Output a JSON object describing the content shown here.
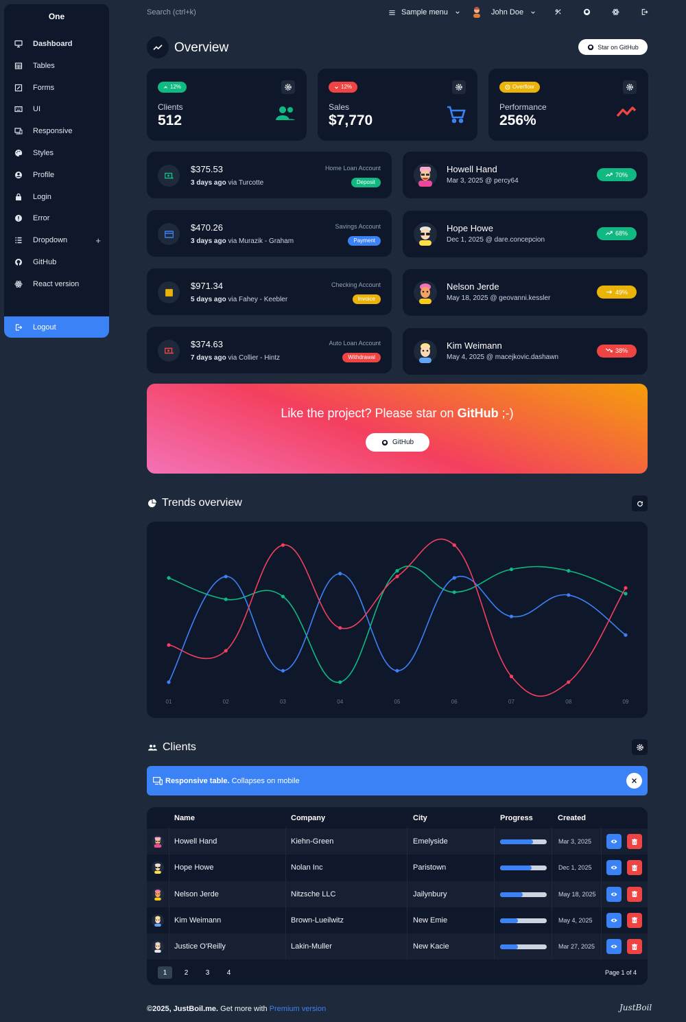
{
  "sidebar": {
    "brand": "One",
    "items": [
      {
        "label": "Dashboard",
        "icon": "monitor-icon"
      },
      {
        "label": "Tables",
        "icon": "table-icon"
      },
      {
        "label": "Forms",
        "icon": "edit-icon"
      },
      {
        "label": "UI",
        "icon": "keyboard-icon"
      },
      {
        "label": "Responsive",
        "icon": "responsive-icon"
      },
      {
        "label": "Styles",
        "icon": "palette-icon"
      },
      {
        "label": "Profile",
        "icon": "account-icon"
      },
      {
        "label": "Login",
        "icon": "lock-icon"
      },
      {
        "label": "Error",
        "icon": "alert-icon"
      },
      {
        "label": "Dropdown",
        "icon": "list-icon",
        "expand": "+"
      },
      {
        "label": "GitHub",
        "icon": "github-icon"
      },
      {
        "label": "React version",
        "icon": "react-icon"
      }
    ],
    "logout": "Logout"
  },
  "topbar": {
    "search_placeholder": "Search (ctrl+k)",
    "menu": "Sample menu",
    "user": "John Doe"
  },
  "overview": {
    "title": "Overview",
    "star_button": "Star on GitHub"
  },
  "stats": [
    {
      "badge": "12%",
      "badge_color": "#10b981",
      "label": "Clients",
      "value": "512",
      "icon_color": "#10b981"
    },
    {
      "badge": "12%",
      "badge_color": "#ef4444",
      "label": "Sales",
      "value": "$7,770",
      "icon_color": "#3b82f6"
    },
    {
      "badge": "Overflow",
      "badge_color": "#eab308",
      "label": "Performance",
      "value": "256%",
      "icon_color": "#ef4444"
    }
  ],
  "transactions": [
    {
      "amount": "$375.53",
      "when": "3 days ago",
      "via": "via Turcotte",
      "account": "Home Loan Account",
      "tag": "Deposit",
      "color": "#10b981"
    },
    {
      "amount": "$470.26",
      "when": "3 days ago",
      "via": "via Murazik - Graham",
      "account": "Savings Account",
      "tag": "Payment",
      "color": "#3b82f6"
    },
    {
      "amount": "$971.34",
      "when": "5 days ago",
      "via": "via Fahey - Keebler",
      "account": "Checking Account",
      "tag": "Invoice",
      "color": "#eab308"
    },
    {
      "amount": "$374.63",
      "when": "7 days ago",
      "via": "via Collier - Hintz",
      "account": "Auto Loan Account",
      "tag": "Withdrawal",
      "color": "#ef4444"
    }
  ],
  "top_clients": [
    {
      "name": "Howell Hand",
      "sub": "Mar 3, 2025 @ percy64",
      "badge": "70%",
      "color": "#10b981",
      "trend": "up"
    },
    {
      "name": "Hope Howe",
      "sub": "Dec 1, 2025 @ dare.concepcion",
      "badge": "68%",
      "color": "#10b981",
      "trend": "up"
    },
    {
      "name": "Nelson Jerde",
      "sub": "May 18, 2025 @ geovanni.kessler",
      "badge": "49%",
      "color": "#eab308",
      "trend": "flat"
    },
    {
      "name": "Kim Weimann",
      "sub": "May 4, 2025 @ macejkovic.dashawn",
      "badge": "38%",
      "color": "#ef4444",
      "trend": "down"
    }
  ],
  "banner": {
    "text": "Like the project? Please star on ",
    "strong": "GitHub",
    "suffix": " ;-)",
    "button": "GitHub"
  },
  "trends": {
    "title": "Trends overview"
  },
  "chart_data": {
    "type": "line",
    "x": [
      "01",
      "02",
      "03",
      "04",
      "05",
      "06",
      "07",
      "08",
      "09"
    ],
    "ylim": [
      0,
      100
    ],
    "grid": false,
    "series": [
      {
        "color": "#10b981",
        "values": [
          75,
          60,
          62,
          2,
          80,
          65,
          81,
          80,
          64
        ]
      },
      {
        "color": "#3b82f6",
        "values": [
          2,
          76,
          10,
          78,
          10,
          75,
          48,
          63,
          35
        ]
      },
      {
        "color": "#f43f5e",
        "values": [
          28,
          24,
          98,
          40,
          76,
          98,
          6,
          2,
          68
        ]
      }
    ]
  },
  "clients": {
    "title": "Clients",
    "notice_strong": "Responsive table.",
    "notice": " Collapses on mobile",
    "columns": [
      "Name",
      "Company",
      "City",
      "Progress",
      "Created"
    ],
    "rows": [
      {
        "name": "Howell Hand",
        "company": "Kiehn-Green",
        "city": "Emelyside",
        "progress": 70,
        "created": "Mar 3, 2025"
      },
      {
        "name": "Hope Howe",
        "company": "Nolan Inc",
        "city": "Paristown",
        "progress": 68,
        "created": "Dec 1, 2025"
      },
      {
        "name": "Nelson Jerde",
        "company": "Nitzsche LLC",
        "city": "Jailynbury",
        "progress": 49,
        "created": "May 18, 2025"
      },
      {
        "name": "Kim Weimann",
        "company": "Brown-Lueilwitz",
        "city": "New Emie",
        "progress": 38,
        "created": "May 4, 2025"
      },
      {
        "name": "Justice O'Reilly",
        "company": "Lakin-Muller",
        "city": "New Kacie",
        "progress": 38,
        "created": "Mar 27, 2025"
      }
    ],
    "pages": [
      "1",
      "2",
      "3",
      "4"
    ],
    "page_info": "Page 1 of 4"
  },
  "footer": {
    "copyright": "©2025, JustBoil.me.",
    "text": " Get more with ",
    "link": "Premium version",
    "logo": "JustBoil"
  }
}
